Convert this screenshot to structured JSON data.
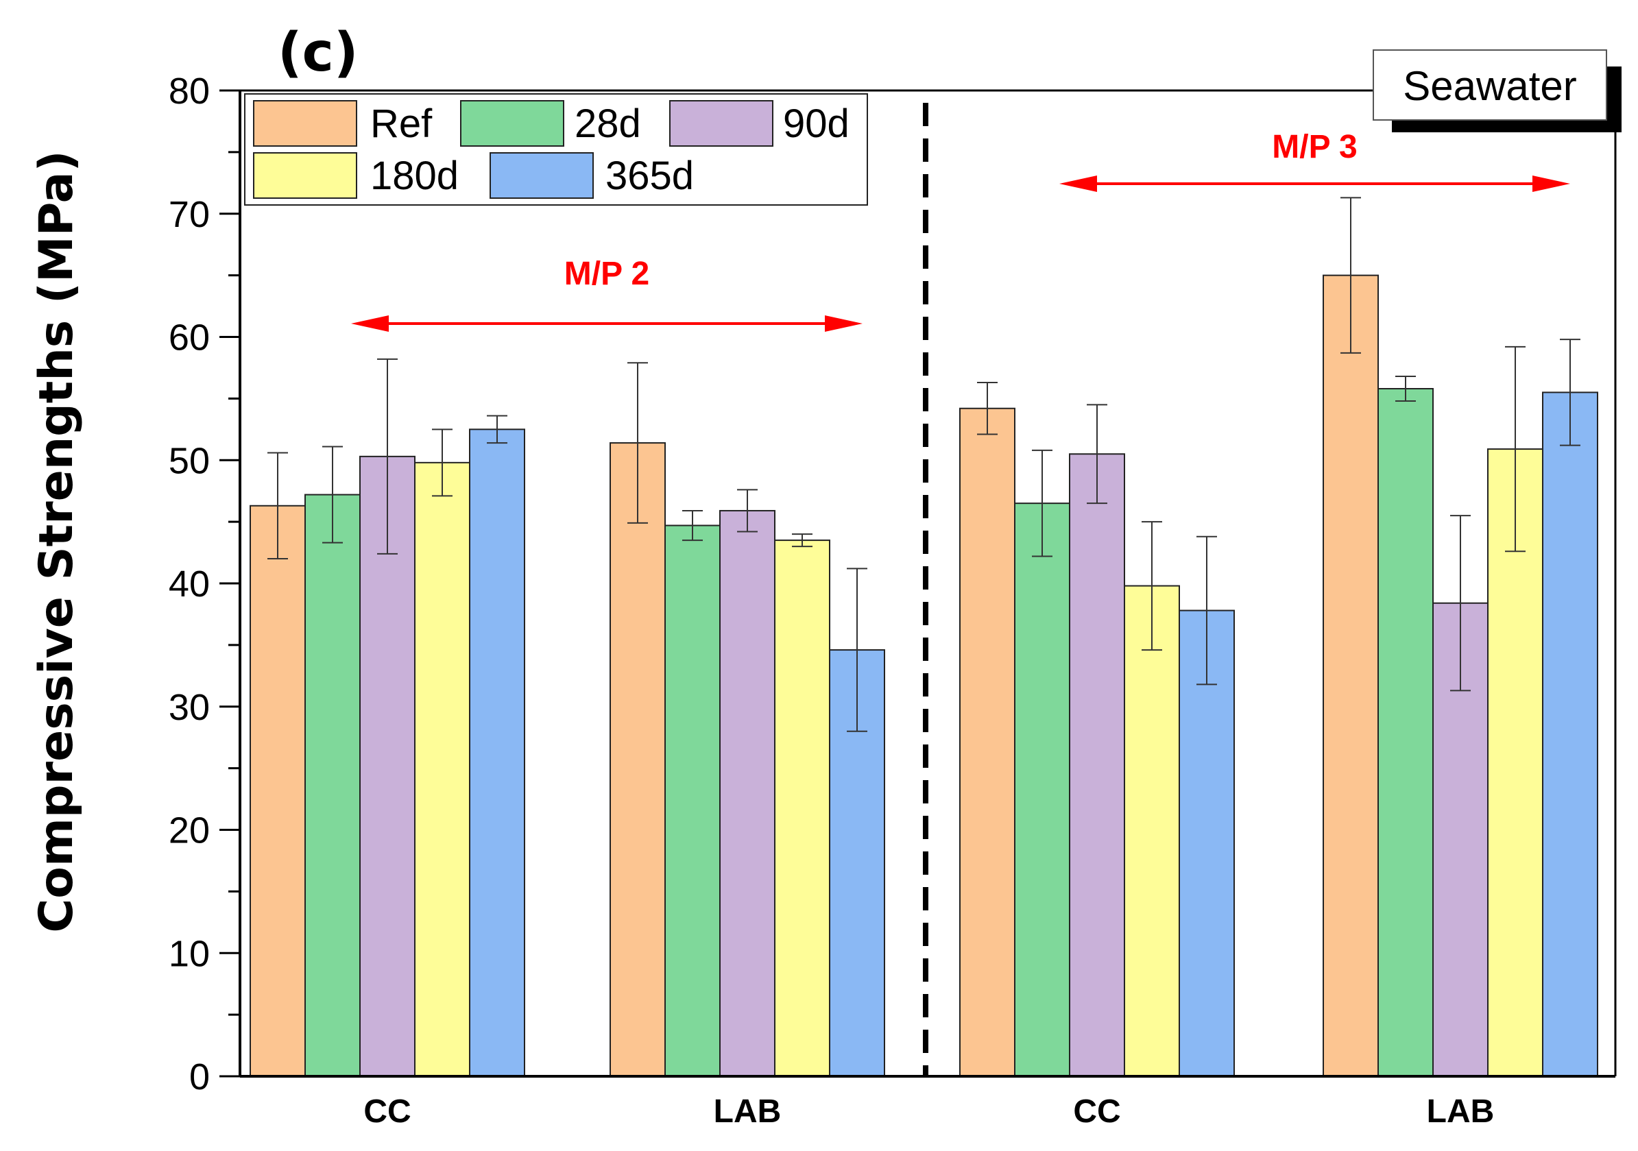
{
  "chart_data": {
    "type": "bar",
    "panel_label": "(c)",
    "environment_label": "Seawater",
    "ylabel": "Compressive Strengths  (MPa)",
    "xlabel": "",
    "ylim": [
      0,
      80
    ],
    "yticks": [
      0,
      10,
      20,
      30,
      40,
      50,
      60,
      70,
      80
    ],
    "categories": [
      "CC",
      "LAB",
      "CC",
      "LAB"
    ],
    "groups": [
      {
        "label": "M/P 2",
        "categories": [
          0,
          1
        ]
      },
      {
        "label": "M/P 3",
        "categories": [
          2,
          3
        ]
      }
    ],
    "legend_position": "top-left",
    "series": [
      {
        "name": "Ref",
        "color": "#fcc591",
        "values": [
          46.3,
          51.4,
          54.2,
          65.0
        ],
        "errors": [
          4.3,
          6.5,
          2.1,
          6.3
        ]
      },
      {
        "name": "28d",
        "color": "#7fd89a",
        "values": [
          47.2,
          44.7,
          46.5,
          55.8
        ],
        "errors": [
          3.9,
          1.2,
          4.3,
          1.0
        ]
      },
      {
        "name": "90d",
        "color": "#c9b1d9",
        "values": [
          50.3,
          45.9,
          50.5,
          38.4
        ],
        "errors": [
          7.9,
          1.7,
          4.0,
          7.1
        ]
      },
      {
        "name": "180d",
        "color": "#fefd98",
        "values": [
          49.8,
          43.5,
          39.8,
          50.9
        ],
        "errors": [
          2.7,
          0.5,
          5.2,
          8.3
        ]
      },
      {
        "name": "365d",
        "color": "#8ab8f4",
        "values": [
          52.5,
          34.6,
          37.8,
          55.5
        ],
        "errors": [
          1.1,
          6.6,
          6.0,
          4.3
        ]
      }
    ]
  }
}
